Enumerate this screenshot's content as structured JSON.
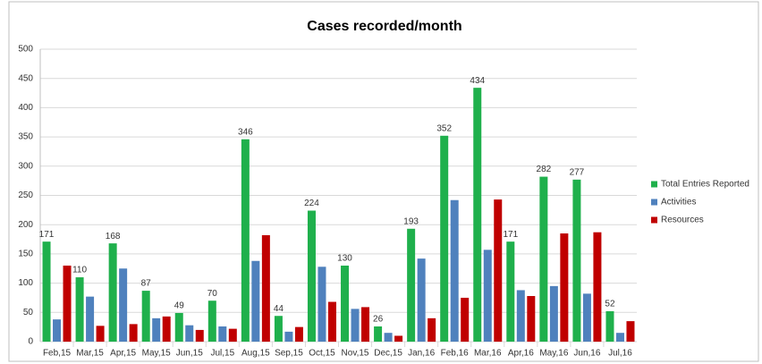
{
  "chart_data": {
    "type": "bar",
    "title": "Cases recorded/month",
    "categories": [
      "Feb,15",
      "Mar,15",
      "Apr,15",
      "May,15",
      "Jun,15",
      "Jul,15",
      "Aug,15",
      "Sep,15",
      "Oct,15",
      "Nov,15",
      "Dec,15",
      "Jan,16",
      "Feb,16",
      "Mar,16",
      "Apr,16",
      "May,16",
      "Jun,16",
      "Jul,16"
    ],
    "series": [
      {
        "name": "Total Entries Reported",
        "color": "#1fb04c",
        "values": [
          171,
          110,
          168,
          87,
          49,
          70,
          346,
          44,
          224,
          130,
          26,
          193,
          352,
          434,
          171,
          282,
          277,
          52
        ],
        "data_labels": true
      },
      {
        "name": "Activities",
        "color": "#4f81bd",
        "values": [
          38,
          77,
          125,
          40,
          28,
          26,
          138,
          17,
          128,
          56,
          15,
          142,
          242,
          157,
          88,
          95,
          82,
          15
        ]
      },
      {
        "name": "Resources",
        "color": "#c00000",
        "values": [
          130,
          27,
          30,
          43,
          20,
          22,
          182,
          25,
          68,
          59,
          10,
          40,
          75,
          243,
          78,
          185,
          187,
          35
        ]
      }
    ],
    "ylim": [
      0,
      500
    ],
    "yticks": [
      0,
      50,
      100,
      150,
      200,
      250,
      300,
      350,
      400,
      450,
      500
    ],
    "grid": true,
    "legend": "right"
  }
}
